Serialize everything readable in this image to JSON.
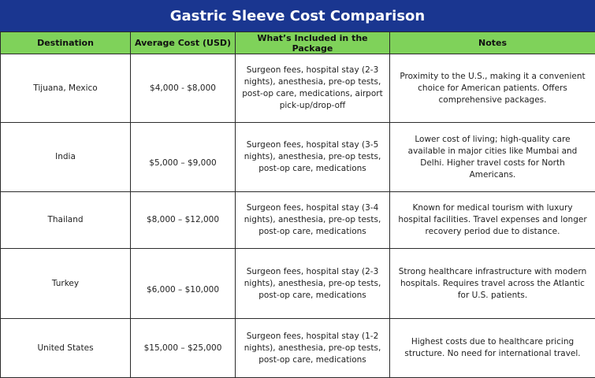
{
  "title": "Gastric Sleeve Cost Comparison",
  "headers": {
    "destination": "Destination",
    "cost": "Average Cost (USD)",
    "included": "What’s Included in the Package",
    "notes": "Notes"
  },
  "rows": [
    {
      "destination": "Tijuana, Mexico",
      "cost": "$4,000 - $8,000",
      "included": "Surgeon fees, hospital stay (2-3 nights), anesthesia, pre-op tests, post-op care, medications, airport pick-up/drop-off",
      "notes": "Proximity to the U.S., making it a convenient choice for American patients. Offers comprehensive packages."
    },
    {
      "destination": "India",
      "cost": "$5,000 – $9,000",
      "included": "Surgeon fees, hospital stay (3-5 nights), anesthesia, pre-op tests, post-op care, medications",
      "notes": "Lower cost of living; high-quality care available in major cities like Mumbai and Delhi. Higher travel costs for North Americans."
    },
    {
      "destination": "Thailand",
      "cost": "$8,000 – $12,000",
      "included": "Surgeon fees, hospital stay (3-4 nights), anesthesia, pre-op tests, post-op care, medications",
      "notes": "Known for medical tourism with luxury hospital facilities. Travel expenses and longer recovery period due to distance."
    },
    {
      "destination": "Turkey",
      "cost": "$6,000 – $10,000",
      "included": "Surgeon fees, hospital stay (2-3 nights), anesthesia, pre-op tests, post-op care, medications",
      "notes": "Strong healthcare infrastructure with modern hospitals. Requires travel across the Atlantic for U.S. patients."
    },
    {
      "destination": "United States",
      "cost": "$15,000 – $25,000",
      "included": "Surgeon fees, hospital stay (1-2 nights), anesthesia, pre-op tests, post-op care, medications",
      "notes": "Highest costs due to healthcare pricing structure. No need for international travel."
    }
  ],
  "colors": {
    "title_bg": "#1a3690",
    "header_bg": "#7fd25a",
    "border": "#2b2b2b"
  }
}
